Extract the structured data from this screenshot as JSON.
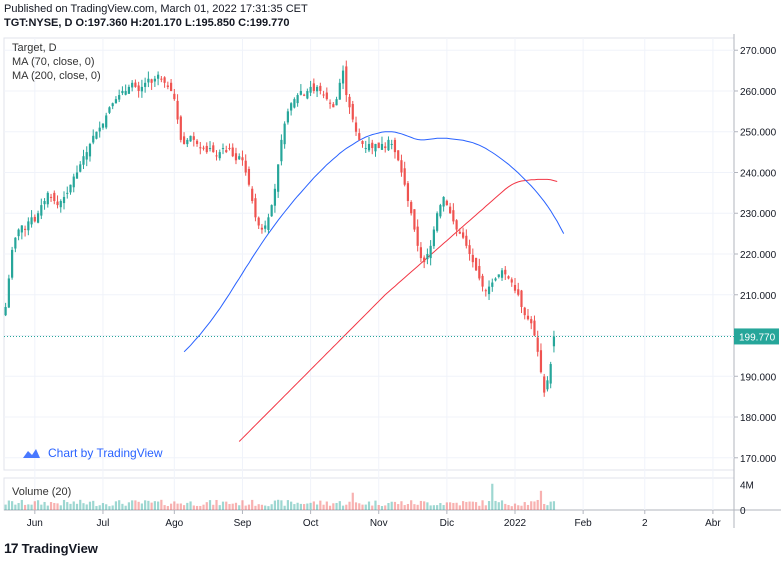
{
  "header": {
    "published": "Published on TradingView.com, March 01, 2022 17:31:35 CET",
    "quote": "TGT:NYSE, D  O:197.360 H:201.170 L:195.850 C:199.770"
  },
  "legend": {
    "name": "Target, D",
    "ma70": "MA (70, close, 0)",
    "ma200": "MA (200, close, 0)"
  },
  "volume_legend": "Volume (20)",
  "watermark": "Chart by TradingView",
  "footer_brand": "TradingView",
  "colors": {
    "up": "#26a69a",
    "down": "#ef5350",
    "ma70": "#2962ff",
    "ma200": "#f23645",
    "last": "#26a69a"
  },
  "chart_data": {
    "type": "candlestick",
    "symbol": "TGT:NYSE",
    "interval": "D",
    "ylim": [
      167,
      273
    ],
    "y_ticks": [
      {
        "label": "270.000",
        "v": 270
      },
      {
        "label": "260.000",
        "v": 260
      },
      {
        "label": "250.000",
        "v": 250
      },
      {
        "label": "240.000",
        "v": 240
      },
      {
        "label": "230.000",
        "v": 230
      },
      {
        "label": "220.000",
        "v": 220
      },
      {
        "label": "210.000",
        "v": 210
      },
      {
        "label": "200.000",
        "v": 200
      },
      {
        "label": "190.000",
        "v": 190
      },
      {
        "label": "180.000",
        "v": 180
      },
      {
        "label": "170.000",
        "v": 170
      }
    ],
    "last_price": {
      "label": "199.770",
      "v": 199.77
    },
    "volume_ticks": [
      {
        "label": "4M",
        "v": 4
      },
      {
        "label": "0",
        "v": 0
      }
    ],
    "volume_max": 5,
    "x_ticks": [
      {
        "label": "Jun",
        "i": 9
      },
      {
        "label": "Jul",
        "i": 30
      },
      {
        "label": "Ago",
        "i": 52
      },
      {
        "label": "Sep",
        "i": 73
      },
      {
        "label": "Oct",
        "i": 94
      },
      {
        "label": "Nov",
        "i": 115
      },
      {
        "label": "Dic",
        "i": 136
      },
      {
        "label": "2022",
        "i": 157
      },
      {
        "label": "Feb",
        "i": 178
      },
      {
        "label": "2",
        "i": 197
      },
      {
        "label": "Abr",
        "i": 218
      }
    ],
    "closes": [
      207,
      214,
      221,
      224,
      226,
      227,
      226,
      228,
      229,
      228,
      230,
      232,
      233,
      235,
      234,
      233,
      232,
      233,
      234,
      235,
      237,
      239,
      240,
      242,
      244,
      245,
      247,
      249,
      250,
      251,
      252,
      254,
      256,
      257,
      258,
      259,
      260,
      260,
      261,
      262,
      261,
      260,
      261,
      262,
      263,
      262,
      263,
      264,
      263,
      262,
      261,
      260,
      258,
      253,
      248,
      247,
      248,
      249,
      248,
      247,
      246,
      246,
      245,
      246,
      245,
      244,
      245,
      246,
      245,
      246,
      244,
      243,
      244,
      243,
      240,
      237,
      233,
      229,
      227,
      226,
      227,
      229,
      232,
      236,
      242,
      248,
      252,
      255,
      257,
      258,
      259,
      260,
      259,
      260,
      261,
      260,
      261,
      260,
      259,
      258,
      257,
      256,
      258,
      262,
      265,
      259,
      256,
      253,
      250,
      248,
      247,
      246,
      247,
      246,
      247,
      246,
      247,
      246,
      248,
      247,
      245,
      243,
      240,
      237,
      233,
      230,
      226,
      222,
      219,
      218,
      220,
      222,
      226,
      230,
      232,
      234,
      232,
      230,
      228,
      226,
      225,
      224,
      222,
      220,
      218,
      216,
      214,
      212,
      211,
      212,
      213,
      214,
      215,
      216,
      215,
      214,
      213,
      211,
      210,
      207,
      205,
      204,
      203,
      200,
      196,
      191,
      186,
      189,
      193,
      199.77
    ],
    "ma70": [
      196.0,
      196.8,
      197.6,
      198.5,
      199.4,
      200.3,
      201.3,
      202.3,
      203.3,
      204.4,
      205.5,
      206.6,
      207.8,
      209.0,
      210.2,
      211.5,
      212.8,
      214.0,
      215.3,
      216.6,
      217.8,
      219.1,
      220.3,
      221.5,
      222.7,
      223.9,
      225.0,
      226.1,
      227.2,
      228.3,
      229.3,
      230.3,
      231.3,
      232.3,
      233.3,
      234.2,
      235.1,
      236.0,
      236.9,
      237.8,
      238.7,
      239.5,
      240.3,
      241.1,
      241.9,
      242.6,
      243.3,
      244.0,
      244.7,
      245.3,
      245.9,
      246.4,
      246.9,
      247.4,
      247.9,
      248.3,
      248.7,
      249.0,
      249.3,
      249.5,
      249.7,
      249.9,
      250.0,
      250.0,
      250.0,
      249.9,
      249.7,
      249.5,
      249.2,
      248.9,
      248.6,
      248.3,
      248.1,
      248.0,
      248.0,
      248.1,
      248.2,
      248.3,
      248.4,
      248.4,
      248.4,
      248.4,
      248.3,
      248.2,
      248.1,
      248.0,
      247.9,
      247.7,
      247.5,
      247.3,
      247.0,
      246.7,
      246.3,
      245.9,
      245.4,
      244.9,
      244.4,
      243.8,
      243.2,
      242.6,
      242.0,
      241.3,
      240.6,
      239.9,
      239.1,
      238.3,
      237.5,
      236.7,
      235.8,
      234.9,
      233.9,
      232.9,
      231.8,
      230.6,
      229.3,
      228.0,
      226.5,
      225.0
    ],
    "ma70_start_index": 55,
    "ma200": [
      174.0,
      174.8,
      175.6,
      176.4,
      177.2,
      178.0,
      178.8,
      179.6,
      180.4,
      181.2,
      182.0,
      182.8,
      183.6,
      184.4,
      185.2,
      186.0,
      186.8,
      187.6,
      188.4,
      189.2,
      190.0,
      190.8,
      191.6,
      192.4,
      193.2,
      194.0,
      194.8,
      195.6,
      196.4,
      197.2,
      198.0,
      198.8,
      199.6,
      200.4,
      201.2,
      202.0,
      202.8,
      203.6,
      204.4,
      205.2,
      206.0,
      206.8,
      207.6,
      208.4,
      209.2,
      210.0,
      210.7,
      211.4,
      212.1,
      212.8,
      213.5,
      214.2,
      214.9,
      215.6,
      216.3,
      217.0,
      217.7,
      218.4,
      219.1,
      219.8,
      220.5,
      221.2,
      221.9,
      222.6,
      223.3,
      224.0,
      224.7,
      225.4,
      226.1,
      226.8,
      227.5,
      228.2,
      228.9,
      229.6,
      230.3,
      231.0,
      231.7,
      232.4,
      233.1,
      233.8,
      234.5,
      235.2,
      235.9,
      236.5,
      237.0,
      237.4,
      237.7,
      237.9,
      238.0,
      238.1,
      238.2,
      238.2,
      238.3,
      238.3,
      238.3,
      238.3,
      238.2,
      238.0,
      237.8
    ],
    "ma200_start_index": 72
  }
}
